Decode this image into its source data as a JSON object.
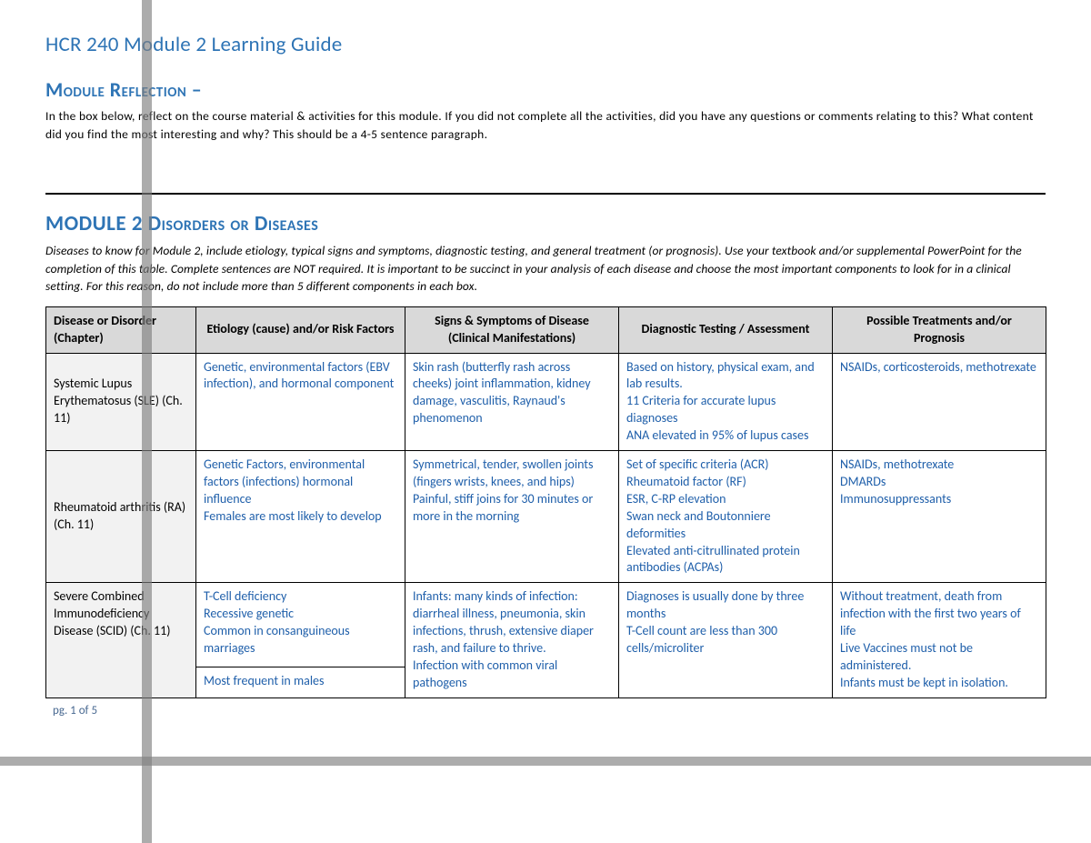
{
  "document": {
    "title": "HCR 240 Module 2 Learning Guide",
    "page_label": "pg. 1 of 5",
    "heading_color": "#2e74b5",
    "body_color": "#000000",
    "cell_text_color": "#1f5faa",
    "th_bg": "#d9d9d9",
    "row_label_bg": "#f2f2f2"
  },
  "reflection": {
    "heading": "Module Reflection –",
    "instructions": "In the box below, reflect on the course material & activities for this module.  If you did not complete all the activities, did you have any questions or comments relating to this?  What content did you find the most interesting and why?  This should be a 4-5 sentence paragraph."
  },
  "diseases": {
    "heading": "MODULE 2 Disorders or Diseases",
    "instructions": "Diseases to know for Module 2, include etiology, typical signs and symptoms, diagnostic testing, and general treatment (or prognosis).  Use your textbook and/or supplemental PowerPoint for the completion of this table.  Complete sentences are NOT required.   It is important to be succinct in your analysis of each disease and choose the most important components to look for in a clinical setting. For this reason, do not include more than 5 different components in each box.",
    "columns": [
      "Disease or Disorder (Chapter)",
      "Etiology (cause) and/or Risk Factors",
      "Signs & Symptoms of Disease (Clinical Manifestations)",
      "Diagnostic Testing / Assessment",
      "Possible Treatments and/or Prognosis"
    ],
    "rows": [
      {
        "name": "Systemic Lupus Erythematosus (SLE) (Ch. 11)",
        "etiology": "Genetic, environmental factors (EBV infection), and hormonal component",
        "signs": "Skin rash (butterfly rash across cheeks) joint inflammation, kidney damage, vasculitis, Raynaud's phenomenon",
        "diagnostic": "Based on history, physical exam, and lab results.\n11 Criteria for accurate lupus diagnoses\nANA elevated in 95% of lupus cases",
        "treatment": "NSAIDs, corticosteroids, methotrexate"
      },
      {
        "name": "Rheumatoid arthritis (RA) (Ch. 11)",
        "etiology": "Genetic Factors, environmental factors (infections) hormonal influence\nFemales are most likely to develop",
        "signs": "Symmetrical, tender, swollen joints (fingers wrists, knees, and hips)\nPainful, stiff joins for 30 minutes or more in the morning",
        "diagnostic": "Set of specific criteria (ACR)\nRheumatoid factor (RF)\nESR, C-RP elevation\nSwan neck and Boutonniere deformities\nElevated anti-citrullinated protein antibodies (ACPAs)",
        "treatment": "NSAIDs, methotrexate\nDMARDs\nImmunosuppressants"
      },
      {
        "name": "Severe Combined Immunodeficiency Disease (SCID) (Ch. 11)",
        "etiology_a": "T-Cell deficiency\nRecessive genetic\nCommon in consanguineous marriages",
        "etiology_b": "Most frequent in males",
        "signs": "Infants: many kinds of infection: diarrheal illness, pneumonia, skin infections, thrush, extensive diaper rash, and failure to thrive.\nInfection with common viral pathogens",
        "diagnostic": "Diagnoses is usually done by three months\nT-Cell count are less than 300 cells/microliter",
        "treatment": "Without treatment, death from infection with the first two years of life\nLive Vaccines must not be administered.\nInfants must be kept in isolation."
      }
    ]
  }
}
